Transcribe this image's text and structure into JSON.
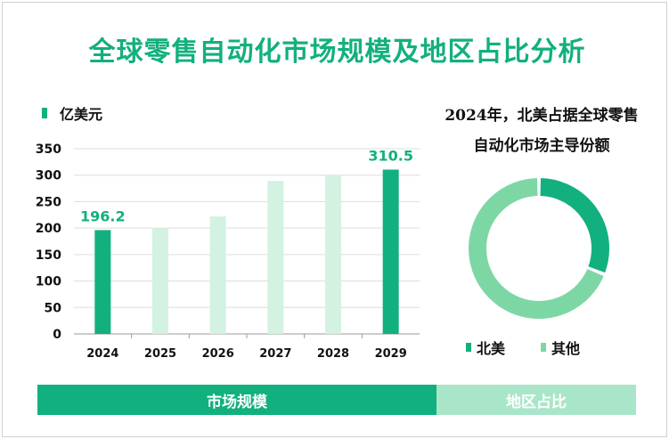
{
  "title": "全球零售自动化市场规模及地区占比分析",
  "chart_data": [
    {
      "type": "bar",
      "legend": "亿美元",
      "categories": [
        "2024",
        "2025",
        "2026",
        "2027",
        "2028",
        "2029"
      ],
      "values": [
        196.2,
        200,
        222,
        289,
        300,
        310.5
      ],
      "data_labels": {
        "0": "196.2",
        "5": "310.5"
      },
      "highlight_indices": [
        0,
        5
      ],
      "y_ticks": [
        0,
        50,
        100,
        150,
        200,
        250,
        300,
        350
      ],
      "ylim": [
        0,
        350
      ],
      "grid": true,
      "colors": {
        "highlight": "#12b07e",
        "normal": "#d3f2e2"
      }
    },
    {
      "type": "pie",
      "title_lines": [
        "2024年，北美占据全球零售",
        "自动化市场主导份额"
      ],
      "labels": [
        "北美",
        "其他"
      ],
      "values": [
        31,
        69
      ],
      "colors": [
        "#12b07e",
        "#7dd7a5"
      ]
    }
  ],
  "tabs": [
    {
      "label": "市场规模",
      "active": true
    },
    {
      "label": "地区占比",
      "active": false
    }
  ]
}
